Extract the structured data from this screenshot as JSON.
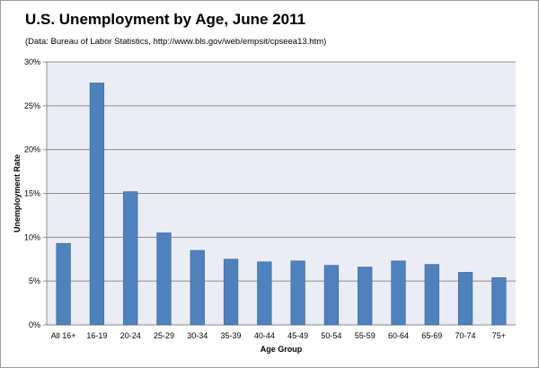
{
  "chart_data": {
    "type": "bar",
    "title": "U.S. Unemployment by Age, June 2011",
    "subtitle": "(Data: Bureau of Labor Statistics, http://www.bls.gov/web/empsit/cpseea13.htm)",
    "xlabel": "Age Group",
    "ylabel": "Unemployment Rate",
    "categories": [
      "All 16+",
      "16-19",
      "20-24",
      "25-29",
      "30-34",
      "35-39",
      "40-44",
      "45-49",
      "50-54",
      "55-59",
      "60-64",
      "65-69",
      "70-74",
      "75+"
    ],
    "values": [
      9.3,
      27.6,
      15.2,
      10.5,
      8.5,
      7.5,
      7.2,
      7.3,
      6.8,
      6.6,
      7.3,
      6.9,
      6.0,
      5.4
    ],
    "ylim": [
      0,
      30
    ],
    "yticks": [
      0,
      5,
      10,
      15,
      20,
      25,
      30
    ],
    "ytick_labels": [
      "0%",
      "5%",
      "10%",
      "15%",
      "20%",
      "25%",
      "30%"
    ],
    "grid": true,
    "colors": {
      "bar": "#4f81bd",
      "bar_edge": "#3a6597",
      "plot_bg": "#eaedf5",
      "gridline": "#8c8c8c"
    }
  }
}
